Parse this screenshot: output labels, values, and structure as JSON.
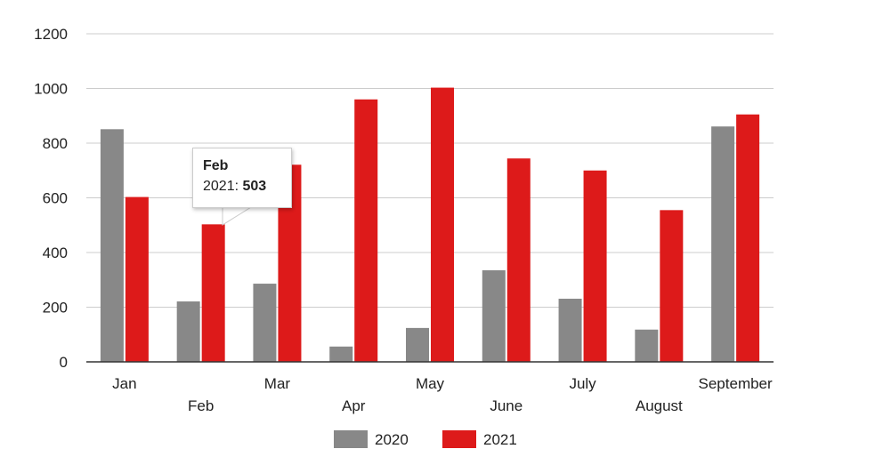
{
  "chart_data": {
    "type": "bar",
    "categories": [
      "Jan",
      "Feb",
      "Mar",
      "Apr",
      "May",
      "June",
      "July",
      "August",
      "September"
    ],
    "series": [
      {
        "name": "2020",
        "color": "#888888",
        "values": [
          851,
          221,
          286,
          56,
          124,
          335,
          231,
          118,
          861
        ]
      },
      {
        "name": "2021",
        "color": "#dd1a1a",
        "values": [
          603,
          503,
          721,
          960,
          1003,
          744,
          700,
          555,
          905
        ]
      }
    ],
    "ylim": [
      0,
      1200
    ],
    "yticks": [
      "0",
      "200",
      "400",
      "600",
      "800",
      "1000",
      "1200"
    ],
    "grid": true,
    "legend": "bottom",
    "tooltip": {
      "title": "Feb",
      "series_label": "2021",
      "value": "503"
    }
  }
}
